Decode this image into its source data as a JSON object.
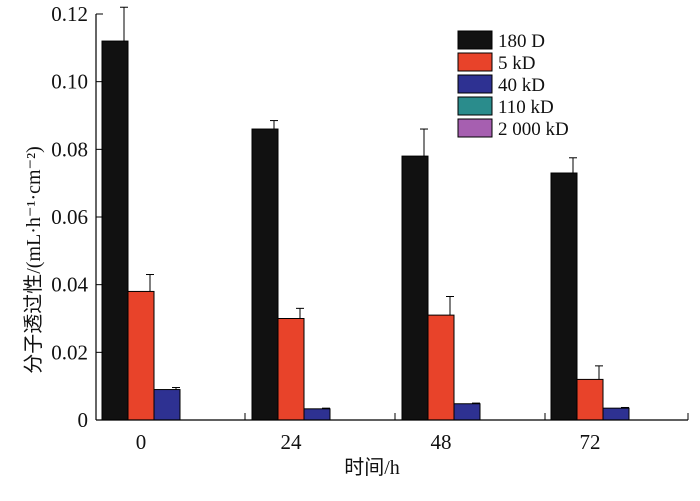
{
  "chart_data": {
    "type": "bar",
    "title": "",
    "xlabel": "时间/h",
    "ylabel": "分子透过性/(mL·h⁻¹·cm⁻²)",
    "categories": [
      "0",
      "24",
      "48",
      "72"
    ],
    "ylim": [
      0,
      0.12
    ],
    "yticks": [
      "0",
      "0.02",
      "0.04",
      "0.06",
      "0.08",
      "0.10",
      "0.12"
    ],
    "legend_position": "top-right",
    "grid": false,
    "series": [
      {
        "name": "180 D",
        "color": "#111111",
        "values": [
          0.112,
          0.086,
          0.078,
          0.073
        ],
        "errors": [
          0.01,
          0.0025,
          0.008,
          0.0045
        ]
      },
      {
        "name": "5 kD",
        "color": "#e8432a",
        "values": [
          0.038,
          0.03,
          0.031,
          0.012
        ],
        "errors": [
          0.005,
          0.003,
          0.0055,
          0.004
        ]
      },
      {
        "name": "40 kD",
        "color": "#2e3192",
        "values": [
          0.009,
          0.0033,
          0.0048,
          0.0035
        ],
        "errors": [
          0.0006,
          0.0002,
          0.0002,
          0.0002
        ]
      },
      {
        "name": "110 kD",
        "color": "#2a8c8c",
        "values": [
          0,
          0,
          0,
          0
        ],
        "errors": [
          0,
          0,
          0,
          0
        ]
      },
      {
        "name": "2 000 kD",
        "color": "#a65fb0",
        "values": [
          0,
          0,
          0,
          0
        ],
        "errors": [
          0,
          0,
          0,
          0
        ]
      }
    ]
  }
}
